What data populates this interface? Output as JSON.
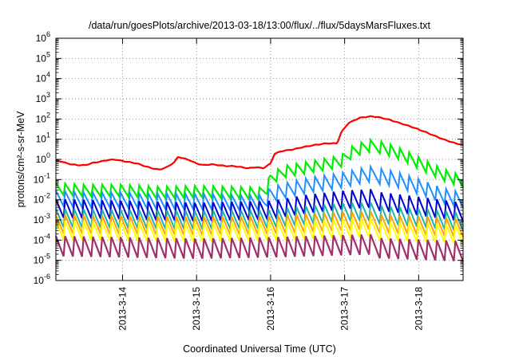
{
  "chart_data": {
    "type": "line",
    "title": "/data/run/goesPlots/archive/2013-03-18/13:00/flux/../flux/5daysMarsFluxes.txt",
    "xlabel": "Coordinated Universal Time (UTC)",
    "ylabel": "protons/cm²-s-sr-MeV",
    "x_range_days": [
      13.1,
      18.6
    ],
    "y_scale": "log",
    "ylim": [
      1e-06,
      1000000.0
    ],
    "grid": "dotted",
    "x_ticks": [
      {
        "label": "2013-3-14",
        "day": 14
      },
      {
        "label": "2013-3-15",
        "day": 15
      },
      {
        "label": "2013-3-16",
        "day": 16
      },
      {
        "label": "2013-3-17",
        "day": 17
      },
      {
        "label": "2013-3-18",
        "day": 18
      }
    ],
    "y_ticks": [
      {
        "base": "10",
        "exp": "-6",
        "value": 1e-06
      },
      {
        "base": "10",
        "exp": "-5",
        "value": 1e-05
      },
      {
        "base": "10",
        "exp": "-4",
        "value": 0.0001
      },
      {
        "base": "10",
        "exp": "-3",
        "value": 0.001
      },
      {
        "base": "10",
        "exp": "-2",
        "value": 0.01
      },
      {
        "base": "10",
        "exp": "-1",
        "value": 0.1
      },
      {
        "base": "10",
        "exp": "0",
        "value": 1
      },
      {
        "base": "10",
        "exp": "1",
        "value": 10
      },
      {
        "base": "10",
        "exp": "2",
        "value": 100
      },
      {
        "base": "10",
        "exp": "3",
        "value": 1000
      },
      {
        "base": "10",
        "exp": "4",
        "value": 10000
      },
      {
        "base": "10",
        "exp": "5",
        "value": 100000
      },
      {
        "base": "10",
        "exp": "6",
        "value": 1000000
      }
    ],
    "series": [
      {
        "color": "#ff0000",
        "stroke_width": 2.2,
        "points": [
          [
            13.1,
            0.9
          ],
          [
            13.2,
            0.7
          ],
          [
            13.3,
            0.55
          ],
          [
            13.4,
            0.5
          ],
          [
            13.5,
            0.5
          ],
          [
            13.6,
            0.65
          ],
          [
            13.7,
            0.75
          ],
          [
            13.8,
            0.9
          ],
          [
            13.9,
            0.95
          ],
          [
            14.0,
            0.8
          ],
          [
            14.1,
            0.7
          ],
          [
            14.2,
            0.6
          ],
          [
            14.3,
            0.45
          ],
          [
            14.4,
            0.35
          ],
          [
            14.5,
            0.3
          ],
          [
            14.6,
            0.4
          ],
          [
            14.7,
            0.7
          ],
          [
            14.75,
            1.3
          ],
          [
            14.9,
            0.9
          ],
          [
            15.0,
            0.6
          ],
          [
            15.1,
            0.5
          ],
          [
            15.2,
            0.55
          ],
          [
            15.3,
            0.5
          ],
          [
            15.4,
            0.45
          ],
          [
            15.5,
            0.45
          ],
          [
            15.6,
            0.4
          ],
          [
            15.7,
            0.35
          ],
          [
            15.8,
            0.4
          ],
          [
            15.9,
            0.35
          ],
          [
            16.0,
            0.6
          ],
          [
            16.05,
            1.8
          ],
          [
            16.15,
            2.5
          ],
          [
            16.3,
            3.0
          ],
          [
            16.45,
            4.0
          ],
          [
            16.6,
            5.0
          ],
          [
            16.75,
            6.0
          ],
          [
            16.9,
            6.0
          ],
          [
            16.95,
            20
          ],
          [
            17.05,
            60
          ],
          [
            17.2,
            110
          ],
          [
            17.35,
            130
          ],
          [
            17.45,
            120
          ],
          [
            17.6,
            90
          ],
          [
            17.75,
            60
          ],
          [
            17.9,
            40
          ],
          [
            18.05,
            25
          ],
          [
            18.2,
            15
          ],
          [
            18.35,
            9
          ],
          [
            18.5,
            6
          ],
          [
            18.6,
            5
          ]
        ]
      },
      {
        "color": "#00ee00",
        "stroke_width": 2.2,
        "points": [
          [
            13.1,
            0.03
          ],
          [
            13.5,
            0.025
          ],
          [
            14.0,
            0.025
          ],
          [
            14.5,
            0.02
          ],
          [
            15.0,
            0.022
          ],
          [
            15.5,
            0.02
          ],
          [
            15.85,
            0.018
          ],
          [
            15.95,
            0.03
          ],
          [
            16.0,
            0.1
          ],
          [
            16.2,
            0.22
          ],
          [
            16.4,
            0.3
          ],
          [
            16.6,
            0.4
          ],
          [
            16.8,
            0.55
          ],
          [
            16.95,
            0.7
          ],
          [
            17.1,
            2.0
          ],
          [
            17.3,
            4.0
          ],
          [
            17.5,
            4.5
          ],
          [
            17.7,
            2.5
          ],
          [
            17.9,
            1.2
          ],
          [
            18.1,
            0.5
          ],
          [
            18.3,
            0.22
          ],
          [
            18.5,
            0.12
          ],
          [
            18.6,
            0.09
          ]
        ]
      },
      {
        "color": "#1e90ff",
        "stroke_width": 2.0,
        "points": [
          [
            13.1,
            0.01
          ],
          [
            13.5,
            0.008
          ],
          [
            14.0,
            0.008
          ],
          [
            14.5,
            0.007
          ],
          [
            15.0,
            0.007
          ],
          [
            15.5,
            0.006
          ],
          [
            15.9,
            0.006
          ],
          [
            16.0,
            0.015
          ],
          [
            16.3,
            0.03
          ],
          [
            16.6,
            0.05
          ],
          [
            16.9,
            0.07
          ],
          [
            17.1,
            0.1
          ],
          [
            17.3,
            0.15
          ],
          [
            17.5,
            0.17
          ],
          [
            17.7,
            0.12
          ],
          [
            17.9,
            0.07
          ],
          [
            18.1,
            0.04
          ],
          [
            18.3,
            0.02
          ],
          [
            18.6,
            0.011
          ]
        ]
      },
      {
        "color": "#0000cd",
        "stroke_width": 2.0,
        "points": [
          [
            13.1,
            0.003
          ],
          [
            14.0,
            0.0025
          ],
          [
            15.0,
            0.002
          ],
          [
            16.0,
            0.0025
          ],
          [
            16.5,
            0.005
          ],
          [
            17.0,
            0.008
          ],
          [
            17.5,
            0.01
          ],
          [
            18.0,
            0.006
          ],
          [
            18.6,
            0.003
          ]
        ]
      },
      {
        "color": "#20b2aa",
        "stroke_width": 2.0,
        "points": [
          [
            13.1,
            0.001
          ],
          [
            14.0,
            0.0009
          ],
          [
            15.0,
            0.0008
          ],
          [
            16.0,
            0.0009
          ],
          [
            16.5,
            0.0014
          ],
          [
            17.0,
            0.002
          ],
          [
            17.5,
            0.0022
          ],
          [
            18.0,
            0.0016
          ],
          [
            18.6,
            0.001
          ]
        ]
      },
      {
        "color": "#ffa500",
        "stroke_width": 2.0,
        "points": [
          [
            13.1,
            0.0005
          ],
          [
            14.0,
            0.00045
          ],
          [
            15.0,
            0.0004
          ],
          [
            16.0,
            0.00045
          ],
          [
            17.0,
            0.0007
          ],
          [
            17.5,
            0.0008
          ],
          [
            18.6,
            0.0005
          ]
        ]
      },
      {
        "color": "#ffff00",
        "stroke_width": 2.0,
        "points": [
          [
            13.1,
            0.00025
          ],
          [
            14.0,
            0.00022
          ],
          [
            15.0,
            0.0002
          ],
          [
            16.0,
            0.00022
          ],
          [
            17.0,
            0.0003
          ],
          [
            17.5,
            0.00035
          ],
          [
            18.6,
            0.00025
          ]
        ]
      },
      {
        "color": "#a0306a",
        "stroke_width": 2.2,
        "points": [
          [
            13.1,
            4e-05
          ],
          [
            14.0,
            3.5e-05
          ],
          [
            15.0,
            3e-05
          ],
          [
            16.0,
            3.5e-05
          ],
          [
            17.0,
            4.5e-05
          ],
          [
            17.5,
            5e-05
          ],
          [
            18.6,
            3.5e-05
          ]
        ]
      }
    ]
  }
}
